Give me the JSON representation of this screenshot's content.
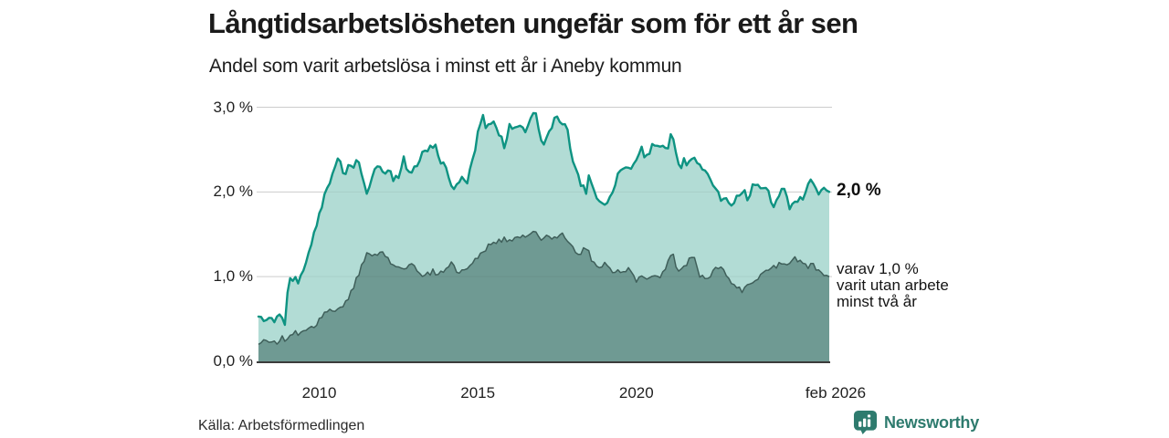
{
  "header": {
    "title": "Långtidsarbetslösheten ungefär som för ett år sen",
    "subtitle": "Andel som varit arbetslösa i minst ett år i Aneby kommun"
  },
  "chart_data": {
    "type": "area",
    "title": "Långtidsarbetslösheten ungefär som för ett år sen",
    "subtitle": "Andel som varit arbetslösa i minst ett år i Aneby kommun",
    "region": "Aneby kommun",
    "x_domain": [
      2008.083,
      2026.083
    ],
    "y_domain": [
      0,
      3
    ],
    "grid": true,
    "y_ticks": [
      {
        "value": 0,
        "label": "0,0 %"
      },
      {
        "value": 1,
        "label": "1,0 %"
      },
      {
        "value": 2,
        "label": "2,0 %"
      },
      {
        "value": 3,
        "label": "3,0 %"
      }
    ],
    "x_ticks": [
      {
        "value": 2010,
        "label": "2010",
        "dx": 0
      },
      {
        "value": 2015,
        "label": "2015",
        "dx": 0
      },
      {
        "value": 2020,
        "label": "2020",
        "dx": 0
      },
      {
        "value": 2026.083,
        "label": "feb 2026",
        "dx": 7
      }
    ],
    "series": [
      {
        "name": "Andel som varit arbetslösa i minst ett år",
        "end_value": 2.0,
        "noise": 0.05,
        "seed": 1337,
        "anchors": [
          [
            2008.08,
            0.53
          ],
          [
            2008.25,
            0.47
          ],
          [
            2008.42,
            0.55
          ],
          [
            2008.58,
            0.48
          ],
          [
            2008.75,
            0.55
          ],
          [
            2008.92,
            0.44
          ],
          [
            2009.0,
            0.82
          ],
          [
            2009.08,
            1.0
          ],
          [
            2009.17,
            0.93
          ],
          [
            2009.25,
            1.0
          ],
          [
            2009.33,
            0.94
          ],
          [
            2009.42,
            1.0
          ],
          [
            2009.58,
            1.15
          ],
          [
            2009.75,
            1.4
          ],
          [
            2009.92,
            1.65
          ],
          [
            2010.08,
            1.85
          ],
          [
            2010.25,
            2.0
          ],
          [
            2010.42,
            2.25
          ],
          [
            2010.58,
            2.4
          ],
          [
            2010.8,
            2.18
          ],
          [
            2010.92,
            2.36
          ],
          [
            2011.08,
            2.3
          ],
          [
            2011.25,
            2.38
          ],
          [
            2011.42,
            2.1
          ],
          [
            2011.5,
            1.97
          ],
          [
            2011.67,
            2.15
          ],
          [
            2011.83,
            2.3
          ],
          [
            2012.0,
            2.2
          ],
          [
            2012.17,
            2.25
          ],
          [
            2012.33,
            2.15
          ],
          [
            2012.5,
            2.18
          ],
          [
            2012.67,
            2.38
          ],
          [
            2012.83,
            2.2
          ],
          [
            2013.0,
            2.3
          ],
          [
            2013.17,
            2.4
          ],
          [
            2013.33,
            2.48
          ],
          [
            2013.5,
            2.55
          ],
          [
            2013.67,
            2.52
          ],
          [
            2013.83,
            2.35
          ],
          [
            2014.0,
            2.25
          ],
          [
            2014.25,
            2.0
          ],
          [
            2014.5,
            2.13
          ],
          [
            2014.67,
            2.1
          ],
          [
            2014.83,
            2.35
          ],
          [
            2015.0,
            2.7
          ],
          [
            2015.17,
            2.95
          ],
          [
            2015.25,
            2.8
          ],
          [
            2015.33,
            2.75
          ],
          [
            2015.5,
            2.85
          ],
          [
            2015.67,
            2.7
          ],
          [
            2015.83,
            2.55
          ],
          [
            2016.0,
            2.77
          ],
          [
            2016.17,
            2.72
          ],
          [
            2016.33,
            2.83
          ],
          [
            2016.5,
            2.75
          ],
          [
            2016.67,
            2.85
          ],
          [
            2016.83,
            2.92
          ],
          [
            2017.0,
            2.6
          ],
          [
            2017.08,
            2.54
          ],
          [
            2017.25,
            2.7
          ],
          [
            2017.42,
            2.88
          ],
          [
            2017.5,
            2.92
          ],
          [
            2017.67,
            2.8
          ],
          [
            2017.83,
            2.7
          ],
          [
            2018.0,
            2.4
          ],
          [
            2018.08,
            2.32
          ],
          [
            2018.25,
            2.1
          ],
          [
            2018.42,
            1.97
          ],
          [
            2018.5,
            2.16
          ],
          [
            2018.67,
            2.02
          ],
          [
            2018.83,
            1.9
          ],
          [
            2019.0,
            1.81
          ],
          [
            2019.17,
            1.97
          ],
          [
            2019.33,
            2.1
          ],
          [
            2019.5,
            2.26
          ],
          [
            2019.67,
            2.25
          ],
          [
            2019.83,
            2.3
          ],
          [
            2020.0,
            2.35
          ],
          [
            2020.17,
            2.5
          ],
          [
            2020.33,
            2.41
          ],
          [
            2020.5,
            2.53
          ],
          [
            2020.67,
            2.56
          ],
          [
            2020.83,
            2.5
          ],
          [
            2021.0,
            2.55
          ],
          [
            2021.13,
            2.73
          ],
          [
            2021.25,
            2.5
          ],
          [
            2021.38,
            2.29
          ],
          [
            2021.5,
            2.36
          ],
          [
            2021.67,
            2.33
          ],
          [
            2021.83,
            2.38
          ],
          [
            2022.0,
            2.33
          ],
          [
            2022.17,
            2.25
          ],
          [
            2022.33,
            2.11
          ],
          [
            2022.5,
            2.0
          ],
          [
            2022.63,
            1.93
          ],
          [
            2022.83,
            1.88
          ],
          [
            2023.0,
            1.81
          ],
          [
            2023.17,
            1.94
          ],
          [
            2023.33,
            2.02
          ],
          [
            2023.5,
            1.95
          ],
          [
            2023.67,
            2.05
          ],
          [
            2023.83,
            2.1
          ],
          [
            2024.0,
            2.05
          ],
          [
            2024.13,
            2.1
          ],
          [
            2024.3,
            1.81
          ],
          [
            2024.5,
            1.95
          ],
          [
            2024.63,
            2.07
          ],
          [
            2024.8,
            1.82
          ],
          [
            2025.0,
            1.91
          ],
          [
            2025.17,
            1.9
          ],
          [
            2025.33,
            2.0
          ],
          [
            2025.55,
            2.16
          ],
          [
            2025.7,
            1.95
          ],
          [
            2025.85,
            2.05
          ],
          [
            2026.08,
            2.0
          ]
        ]
      },
      {
        "name": "varav utan arbete minst två år",
        "end_value": 1.0,
        "noise": 0.035,
        "seed": 911,
        "anchors": [
          [
            2008.08,
            0.2
          ],
          [
            2008.33,
            0.24
          ],
          [
            2008.58,
            0.22
          ],
          [
            2008.83,
            0.27
          ],
          [
            2009.08,
            0.3
          ],
          [
            2009.33,
            0.34
          ],
          [
            2009.42,
            0.37
          ],
          [
            2009.67,
            0.4
          ],
          [
            2009.92,
            0.44
          ],
          [
            2010.17,
            0.55
          ],
          [
            2010.42,
            0.6
          ],
          [
            2010.67,
            0.63
          ],
          [
            2010.92,
            0.71
          ],
          [
            2011.0,
            0.8
          ],
          [
            2011.17,
            0.96
          ],
          [
            2011.33,
            1.14
          ],
          [
            2011.5,
            1.28
          ],
          [
            2011.75,
            1.24
          ],
          [
            2011.92,
            1.3
          ],
          [
            2012.08,
            1.25
          ],
          [
            2012.25,
            1.18
          ],
          [
            2012.5,
            1.09
          ],
          [
            2012.75,
            1.12
          ],
          [
            2013.0,
            1.14
          ],
          [
            2013.25,
            0.98
          ],
          [
            2013.58,
            1.06
          ],
          [
            2013.75,
            1.01
          ],
          [
            2014.0,
            1.1
          ],
          [
            2014.17,
            1.19
          ],
          [
            2014.42,
            1.03
          ],
          [
            2014.75,
            1.15
          ],
          [
            2015.0,
            1.25
          ],
          [
            2015.17,
            1.32
          ],
          [
            2015.5,
            1.38
          ],
          [
            2015.75,
            1.44
          ],
          [
            2016.0,
            1.42
          ],
          [
            2016.33,
            1.48
          ],
          [
            2016.58,
            1.45
          ],
          [
            2016.8,
            1.55
          ],
          [
            2017.0,
            1.46
          ],
          [
            2017.25,
            1.5
          ],
          [
            2017.42,
            1.45
          ],
          [
            2017.67,
            1.52
          ],
          [
            2017.83,
            1.45
          ],
          [
            2018.0,
            1.32
          ],
          [
            2018.25,
            1.27
          ],
          [
            2018.42,
            1.35
          ],
          [
            2018.58,
            1.2
          ],
          [
            2018.83,
            1.09
          ],
          [
            2019.0,
            1.17
          ],
          [
            2019.25,
            1.05
          ],
          [
            2019.5,
            1.05
          ],
          [
            2019.75,
            1.1
          ],
          [
            2020.0,
            0.95
          ],
          [
            2020.17,
            1.0
          ],
          [
            2020.33,
            0.96
          ],
          [
            2020.5,
            1.04
          ],
          [
            2020.75,
            1.02
          ],
          [
            2020.92,
            1.08
          ],
          [
            2021.13,
            1.3
          ],
          [
            2021.3,
            1.06
          ],
          [
            2021.5,
            1.12
          ],
          [
            2021.63,
            1.18
          ],
          [
            2021.83,
            1.21
          ],
          [
            2022.0,
            1.02
          ],
          [
            2022.17,
            0.97
          ],
          [
            2022.33,
            1.0
          ],
          [
            2022.5,
            1.08
          ],
          [
            2022.67,
            1.12
          ],
          [
            2022.83,
            1.0
          ],
          [
            2023.0,
            0.9
          ],
          [
            2023.17,
            0.86
          ],
          [
            2023.3,
            0.84
          ],
          [
            2023.5,
            0.88
          ],
          [
            2023.7,
            0.95
          ],
          [
            2023.9,
            1.0
          ],
          [
            2024.1,
            1.05
          ],
          [
            2024.3,
            1.12
          ],
          [
            2024.5,
            1.14
          ],
          [
            2024.7,
            1.16
          ],
          [
            2024.9,
            1.18
          ],
          [
            2025.0,
            1.22
          ],
          [
            2025.2,
            1.15
          ],
          [
            2025.4,
            1.11
          ],
          [
            2025.6,
            1.14
          ],
          [
            2025.8,
            1.05
          ],
          [
            2026.08,
            1.0
          ]
        ]
      }
    ],
    "annotations": {
      "total": "2,0 %",
      "sub": "varav 1,0 %\nvarit utan arbete\nminst två år"
    }
  },
  "colors": {
    "line_total": "#0e9382",
    "area_total": "#b2dcd5",
    "line_two": "#3f5f5a",
    "area_two": "#6f9a93",
    "grid": "#d9d9d9",
    "baseline": "#3b3b3b",
    "brand": "#2e7b6e"
  },
  "footer": {
    "source": "Källa: Arbetsförmedlingen",
    "brand": "Newsworthy"
  }
}
